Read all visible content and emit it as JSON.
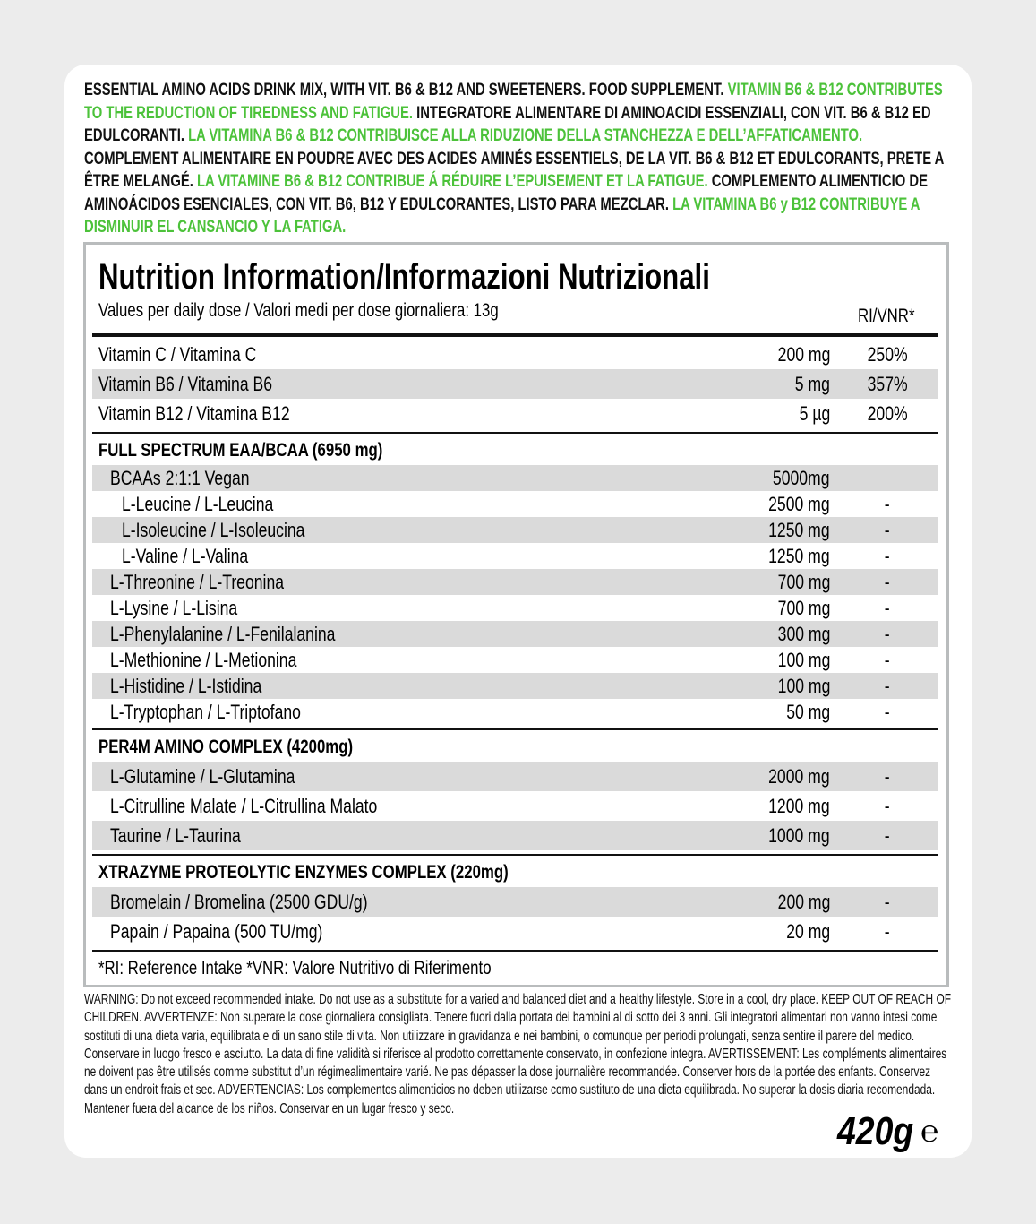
{
  "intro": [
    {
      "text": "ESSENTIAL AMINO ACIDS DRINK MIX, WITH VIT. B6 & B12 AND SWEETENERS. FOOD SUPPLEMENT. ",
      "highlight": false
    },
    {
      "text": "VITAMIN B6 & B12 CONTRIBUTES TO THE REDUCTION OF TIREDNESS AND FATIGUE. ",
      "highlight": true
    },
    {
      "text": "INTEGRATORE ALIMENTARE DI AMINOACIDI ESSENZIALI, CON VIT. B6 & B12 ED EDULCORANTI. ",
      "highlight": false
    },
    {
      "text": "LA VITAMINA B6 & B12 CONTRIBUISCE ALLA RIDUZIONE DELLA STANCHEZZA E DELL’AFFATICAMENTO. ",
      "highlight": true
    },
    {
      "text": "COMPLEMENT ALIMENTAIRE EN POUDRE AVEC DES ACIDES AMINÉS ESSENTIELS, DE LA VIT. B6 & B12 ET EDULCORANTS, PRETE A ÊTRE MELANGÉ. ",
      "highlight": false
    },
    {
      "text": "LA VITAMINE B6 & B12 CONTRIBUE Á RÉDUIRE L’EPUISEMENT ET LA FATIGUE. ",
      "highlight": true
    },
    {
      "text": "COMPLEMENTO ALIMENTICIO DE AMINOÁCIDOS ESENCIALES, CON VIT. B6, B12 Y EDULCORANTES,  LISTO PARA MEZCLAR. ",
      "highlight": false
    },
    {
      "text": "LA VITAMINA B6 y B12 CONTRIBUYE A DISMINUIR EL CANSANCIO Y LA FATIGA.",
      "highlight": true
    }
  ],
  "table": {
    "title": "Nutrition Information/Informazioni Nutrizionali",
    "subtitle": "Values per daily dose / Valori medi per dose giornaliera: 13g",
    "ri_header": "RI/VNR*",
    "sections": [
      {
        "rows": [
          {
            "name": "Vitamin C / Vitamina C",
            "amount": "200 mg",
            "ri": "250%",
            "indent": 0,
            "shaded": false
          },
          {
            "name": "Vitamin B6 / Vitamina B6",
            "amount": "5 mg",
            "ri": "357%",
            "indent": 0,
            "shaded": true
          },
          {
            "name": "Vitamin B12 / Vitamina B12",
            "amount": "5 µg",
            "ri": "200%",
            "indent": 0,
            "shaded": false
          }
        ]
      },
      {
        "heading": "FULL SPECTRUM EAA/BCAA (6950 mg)",
        "rows": [
          {
            "name": "BCAAs 2:1:1 Vegan",
            "amount": "5000mg",
            "indent": 1,
            "shaded": true
          },
          {
            "name": "L-Leucine / L-Leucina",
            "amount": "2500 mg",
            "ri": "-",
            "indent": 2,
            "shaded": false
          },
          {
            "name": "L-Isoleucine / L-Isoleucina",
            "amount": "1250 mg",
            "ri": "-",
            "indent": 2,
            "shaded": true
          },
          {
            "name": "L-Valine / L-Valina",
            "amount": "1250 mg",
            "ri": "-",
            "indent": 2,
            "shaded": false
          },
          {
            "name": "L-Threonine / L-Treonina",
            "amount": "700 mg",
            "ri": "-",
            "indent": 1,
            "shaded": true
          },
          {
            "name": "L-Lysine / L-Lisina",
            "amount": "700 mg",
            "ri": "-",
            "indent": 1,
            "shaded": false
          },
          {
            "name": "L-Phenylalanine / L-Fenilalanina",
            "amount": "300 mg",
            "ri": "-",
            "indent": 1,
            "shaded": true
          },
          {
            "name": "L-Methionine / L-Metionina",
            "amount": "100 mg",
            "ri": "-",
            "indent": 1,
            "shaded": false
          },
          {
            "name": "L-Histidine / L-Istidina",
            "amount": "100 mg",
            "ri": "-",
            "indent": 1,
            "shaded": true
          },
          {
            "name": "L-Tryptophan / L-Triptofano",
            "amount": "50 mg",
            "ri": "-",
            "indent": 1,
            "shaded": false
          }
        ]
      },
      {
        "heading": "PER4M AMINO COMPLEX (4200mg)",
        "rows": [
          {
            "name": "L-Glutamine / L-Glutamina",
            "amount": "2000 mg",
            "ri": "-",
            "indent": 1,
            "shaded": true
          },
          {
            "name": "L-Citrulline Malate / L-Citrullina Malato",
            "amount": "1200 mg",
            "ri": "-",
            "indent": 1,
            "shaded": false
          },
          {
            "name": "Taurine / L-Taurina",
            "amount": "1000 mg",
            "ri": "-",
            "indent": 1,
            "shaded": true
          }
        ]
      },
      {
        "heading": "XTRAZYME PROTEOLYTIC ENZYMES COMPLEX (220mg)",
        "rows": [
          {
            "name": "Bromelain / Bromelina (2500 GDU/g)",
            "amount": "200 mg",
            "ri": "-",
            "indent": 1,
            "shaded": true
          },
          {
            "name": "Papain / Papaina (500 TU/mg)",
            "amount": "20 mg",
            "ri": "-",
            "indent": 1,
            "shaded": false
          }
        ]
      }
    ],
    "footnote": "*RI: Reference Intake   *VNR: Valore Nutritivo di Riferimento"
  },
  "warning": "WARNING: Do not exceed recommended intake. Do not use as a substitute for a varied and balanced diet and a healthy lifestyle. Store in a cool, dry place. KEEP OUT OF REACH OF CHILDREN. AVVERTENZE: Non superare la dose giornaliera consigliata. Tenere fuori dalla portata dei bambini al di sotto dei 3 anni. Gli integratori alimentari non vanno intesi come sostituti di una dieta varia, equilibrata e di un sano stile di vita. Non utilizzare in gravidanza e nei bambini, o comunque per periodi prolungati, senza sentire il parere del medico. Conservare in luogo fresco e asciutto. La data di fine validità si riferisce al prodotto correttamente conservato, in confezione integra. AVERTISSEMENT: Les compléments alimentaires ne doivent pas être utilisés comme substitut d’un régimealimentaire varié. Ne pas dépasser la dose journalière recommandée. Conserver hors de la portée des enfants. Conservez dans un endroit frais et sec. ADVERTENCIAS: Los complementos alimenticios no deben utilizarse como sustituto de una dieta equilibrada. No superar la dosis diaria recomendada. Mantener fuera del alcance de los niños. Conservar en un lugar fresco y seco.",
  "net_weight": "420g",
  "estimated_sign": "℮"
}
